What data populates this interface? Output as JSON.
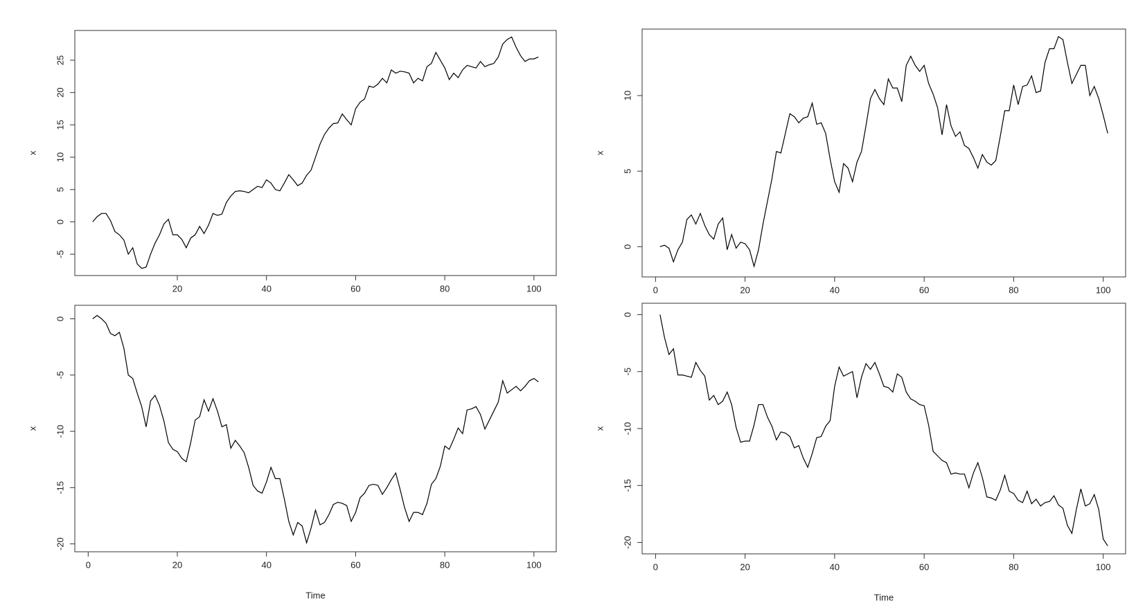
{
  "chart_data": [
    {
      "type": "line",
      "ylabel": "x",
      "color": "#000000",
      "xlim": [
        -3,
        105
      ],
      "ylim": [
        -8.3,
        29.6
      ],
      "xticks": [
        20,
        40,
        60,
        80,
        100
      ],
      "yticks": [
        -5,
        0,
        5,
        10,
        15,
        20,
        25
      ],
      "x": [
        1,
        2,
        3,
        4,
        5,
        6,
        7,
        8,
        9,
        10,
        11,
        12,
        13,
        14,
        15,
        16,
        17,
        18,
        19,
        20,
        21,
        22,
        23,
        24,
        25,
        26,
        27,
        28,
        29,
        30,
        31,
        32,
        33,
        34,
        35,
        36,
        37,
        38,
        39,
        40,
        41,
        42,
        43,
        44,
        45,
        46,
        47,
        48,
        49,
        50,
        51,
        52,
        53,
        54,
        55,
        56,
        57,
        58,
        59,
        60,
        61,
        62,
        63,
        64,
        65,
        66,
        67,
        68,
        69,
        70,
        71,
        72,
        73,
        74,
        75,
        76,
        77,
        78,
        79,
        80,
        81,
        82,
        83,
        84,
        85,
        86,
        87,
        88,
        89,
        90,
        91,
        92,
        93,
        94,
        95,
        96,
        97,
        98,
        99,
        100,
        101
      ],
      "values": [
        0,
        0.8,
        1.3,
        1.3,
        0.2,
        -1.5,
        -2,
        -2.8,
        -5,
        -4,
        -6.5,
        -7.2,
        -7,
        -5,
        -3.3,
        -2,
        -0.3,
        0.4,
        -2,
        -2,
        -2.7,
        -4,
        -2.5,
        -2,
        -0.7,
        -1.8,
        -0.5,
        1.3,
        1,
        1.2,
        3,
        4,
        4.7,
        4.8,
        4.7,
        4.5,
        5,
        5.5,
        5.3,
        6.5,
        6,
        5,
        4.8,
        6,
        7.3,
        6.5,
        5.6,
        6,
        7.2,
        8,
        10,
        12,
        13.5,
        14.5,
        15.2,
        15.3,
        16.7,
        15.8,
        15,
        17.5,
        18.5,
        19,
        21,
        20.8,
        21.3,
        22.2,
        21.5,
        23.5,
        23,
        23.3,
        23.2,
        23,
        21.5,
        22.2,
        21.8,
        24,
        24.5,
        26.2,
        25,
        23.8,
        22,
        23,
        22.3,
        23.5,
        24.2,
        24,
        23.8,
        24.8,
        24,
        24.3,
        24.5,
        25.5,
        27.5,
        28.2,
        28.6,
        27,
        25.7,
        24.8,
        25.2,
        25.2,
        25.5
      ]
    },
    {
      "type": "line",
      "ylabel": "x",
      "color": "#000000",
      "xlim": [
        -3,
        105
      ],
      "ylim": [
        -2.0,
        14.4
      ],
      "xticks": [
        0,
        20,
        40,
        60,
        80,
        100
      ],
      "yticks": [
        0,
        5,
        10
      ],
      "x": [
        1,
        2,
        3,
        4,
        5,
        6,
        7,
        8,
        9,
        10,
        11,
        12,
        13,
        14,
        15,
        16,
        17,
        18,
        19,
        20,
        21,
        22,
        23,
        24,
        25,
        26,
        27,
        28,
        29,
        30,
        31,
        32,
        33,
        34,
        35,
        36,
        37,
        38,
        39,
        40,
        41,
        42,
        43,
        44,
        45,
        46,
        47,
        48,
        49,
        50,
        51,
        52,
        53,
        54,
        55,
        56,
        57,
        58,
        59,
        60,
        61,
        62,
        63,
        64,
        65,
        66,
        67,
        68,
        69,
        70,
        71,
        72,
        73,
        74,
        75,
        76,
        77,
        78,
        79,
        80,
        81,
        82,
        83,
        84,
        85,
        86,
        87,
        88,
        89,
        90,
        91,
        92,
        93,
        94,
        95,
        96,
        97,
        98,
        99,
        100,
        101
      ],
      "values": [
        0,
        0.1,
        -0.1,
        -1,
        -0.2,
        0.3,
        1.8,
        2.1,
        1.5,
        2.2,
        1.4,
        0.8,
        0.5,
        1.5,
        1.9,
        -0.2,
        0.8,
        -0.1,
        0.3,
        0.2,
        -0.2,
        -1.3,
        -0.2,
        1.5,
        3,
        4.5,
        6.3,
        6.2,
        7.5,
        8.8,
        8.6,
        8.2,
        8.5,
        8.6,
        9.5,
        8.1,
        8.2,
        7.5,
        5.8,
        4.3,
        3.6,
        5.5,
        5.2,
        4.3,
        5.6,
        6.3,
        8,
        9.8,
        10.4,
        9.8,
        9.4,
        11.1,
        10.5,
        10.5,
        9.6,
        12,
        12.6,
        12,
        11.6,
        12,
        10.8,
        10.1,
        9.2,
        7.4,
        9.4,
        8,
        7.3,
        7.6,
        6.7,
        6.5,
        5.9,
        5.2,
        6.1,
        5.6,
        5.4,
        5.7,
        7.3,
        9,
        9,
        10.7,
        9.4,
        10.6,
        10.7,
        11.3,
        10.2,
        10.3,
        12.2,
        13.1,
        13.1,
        13.9,
        13.7,
        12.2,
        10.8,
        11.4,
        12,
        12,
        10,
        10.6,
        9.8,
        8.7,
        7.5
      ]
    },
    {
      "type": "line",
      "ylabel": "x",
      "xlabel": "Time",
      "color": "#000000",
      "xlim": [
        -3,
        105
      ],
      "ylim": [
        -20.7,
        1.2
      ],
      "xticks": [
        0,
        20,
        40,
        60,
        80,
        100
      ],
      "yticks": [
        -20,
        -15,
        -10,
        -5,
        0
      ],
      "x": [
        1,
        2,
        3,
        4,
        5,
        6,
        7,
        8,
        9,
        10,
        11,
        12,
        13,
        14,
        15,
        16,
        17,
        18,
        19,
        20,
        21,
        22,
        23,
        24,
        25,
        26,
        27,
        28,
        29,
        30,
        31,
        32,
        33,
        34,
        35,
        36,
        37,
        38,
        39,
        40,
        41,
        42,
        43,
        44,
        45,
        46,
        47,
        48,
        49,
        50,
        51,
        52,
        53,
        54,
        55,
        56,
        57,
        58,
        59,
        60,
        61,
        62,
        63,
        64,
        65,
        66,
        67,
        68,
        69,
        70,
        71,
        72,
        73,
        74,
        75,
        76,
        77,
        78,
        79,
        80,
        81,
        82,
        83,
        84,
        85,
        86,
        87,
        88,
        89,
        90,
        91,
        92,
        93,
        94,
        95,
        96,
        97,
        98,
        99,
        100,
        101
      ],
      "values": [
        0,
        0.3,
        0,
        -0.4,
        -1.3,
        -1.5,
        -1.2,
        -2.6,
        -5,
        -5.3,
        -6.6,
        -7.8,
        -9.6,
        -7.3,
        -6.8,
        -7.7,
        -9.1,
        -11,
        -11.6,
        -11.8,
        -12.4,
        -12.7,
        -11,
        -9,
        -8.7,
        -7.2,
        -8.2,
        -7.1,
        -8.2,
        -9.6,
        -9.4,
        -11.5,
        -10.8,
        -11.3,
        -11.9,
        -13.2,
        -14.8,
        -15.3,
        -15.5,
        -14.5,
        -13.2,
        -14.2,
        -14.2,
        -16,
        -18,
        -19.2,
        -18.1,
        -18.4,
        -19.9,
        -18.6,
        -17,
        -18.3,
        -18.1,
        -17.4,
        -16.5,
        -16.3,
        -16.4,
        -16.6,
        -18,
        -17.2,
        -15.9,
        -15.5,
        -14.8,
        -14.7,
        -14.8,
        -15.6,
        -15,
        -14.3,
        -13.7,
        -15.2,
        -16.8,
        -18,
        -17.2,
        -17.2,
        -17.4,
        -16.4,
        -14.7,
        -14.2,
        -13.1,
        -11.3,
        -11.6,
        -10.7,
        -9.7,
        -10.2,
        -8.1,
        -8,
        -7.8,
        -8.5,
        -9.8,
        -9,
        -8.2,
        -7.4,
        -5.5,
        -6.6,
        -6.3,
        -6,
        -6.4,
        -6,
        -5.5,
        -5.3,
        -5.6
      ]
    },
    {
      "type": "line",
      "ylabel": "x",
      "xlabel": "Time",
      "color": "#000000",
      "xlim": [
        -3,
        105
      ],
      "ylim": [
        -21.0,
        1.0
      ],
      "xticks": [
        0,
        20,
        40,
        60,
        80,
        100
      ],
      "yticks": [
        -20,
        -15,
        -10,
        -5,
        0
      ],
      "x": [
        1,
        2,
        3,
        4,
        5,
        6,
        7,
        8,
        9,
        10,
        11,
        12,
        13,
        14,
        15,
        16,
        17,
        18,
        19,
        20,
        21,
        22,
        23,
        24,
        25,
        26,
        27,
        28,
        29,
        30,
        31,
        32,
        33,
        34,
        35,
        36,
        37,
        38,
        39,
        40,
        41,
        42,
        43,
        44,
        45,
        46,
        47,
        48,
        49,
        50,
        51,
        52,
        53,
        54,
        55,
        56,
        57,
        58,
        59,
        60,
        61,
        62,
        63,
        64,
        65,
        66,
        67,
        68,
        69,
        70,
        71,
        72,
        73,
        74,
        75,
        76,
        77,
        78,
        79,
        80,
        81,
        82,
        83,
        84,
        85,
        86,
        87,
        88,
        89,
        90,
        91,
        92,
        93,
        94,
        95,
        96,
        97,
        98,
        99,
        100,
        101
      ],
      "values": [
        0,
        -2,
        -3.5,
        -3,
        -5.3,
        -5.3,
        -5.4,
        -5.5,
        -4.2,
        -4.9,
        -5.4,
        -7.5,
        -7.1,
        -7.9,
        -7.6,
        -6.8,
        -7.9,
        -9.9,
        -11.2,
        -11.1,
        -11.1,
        -9.7,
        -7.9,
        -7.9,
        -9,
        -9.8,
        -11,
        -10.3,
        -10.4,
        -10.7,
        -11.7,
        -11.5,
        -12.6,
        -13.4,
        -12.2,
        -10.8,
        -10.7,
        -9.8,
        -9.3,
        -6.3,
        -4.6,
        -5.4,
        -5.2,
        -5,
        -7.3,
        -5.5,
        -4.3,
        -4.8,
        -4.2,
        -5.2,
        -6.3,
        -6.4,
        -6.8,
        -5.2,
        -5.5,
        -6.8,
        -7.4,
        -7.6,
        -7.9,
        -8,
        -9.7,
        -12,
        -12.4,
        -12.8,
        -13,
        -14,
        -13.9,
        -14,
        -14,
        -15.2,
        -13.9,
        -13,
        -14.3,
        -16,
        -16.1,
        -16.3,
        -15.4,
        -14.1,
        -15.5,
        -15.7,
        -16.3,
        -16.5,
        -15.5,
        -16.6,
        -16.2,
        -16.8,
        -16.5,
        -16.4,
        -15.9,
        -16.7,
        -17,
        -18.5,
        -19.2,
        -17.1,
        -15.3,
        -16.8,
        -16.6,
        -15.8,
        -17.1,
        -19.7,
        -20.3
      ]
    }
  ]
}
